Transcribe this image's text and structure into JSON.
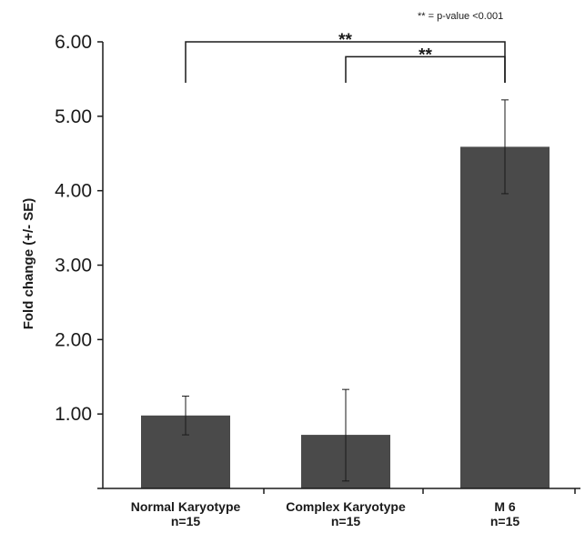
{
  "chart_data": {
    "type": "bar",
    "categories": [
      "Normal Karyotype",
      "Complex Karyotype",
      "M 6"
    ],
    "category_counts": [
      "n=15",
      "n=15",
      "n=15"
    ],
    "values": [
      0.98,
      0.72,
      4.59
    ],
    "error_low": [
      0.72,
      0.1,
      3.96
    ],
    "error_high": [
      1.24,
      1.33,
      5.22
    ],
    "ylabel": "Fold change (+/- SE)",
    "ylim": [
      0,
      6
    ],
    "yticks": [
      "1.00",
      "2.00",
      "3.00",
      "4.00",
      "5.00",
      "6.00"
    ],
    "ytick_values": [
      1,
      2,
      3,
      4,
      5,
      6
    ],
    "note": "** = p-value <0.001",
    "significance": [
      {
        "from": 0,
        "to": 2,
        "label": "**",
        "y": 6.0
      },
      {
        "from": 1,
        "to": 2,
        "label": "**",
        "y": 5.8
      }
    ],
    "bar_color": "#4a4a4a",
    "grid": false,
    "legend": "none"
  }
}
